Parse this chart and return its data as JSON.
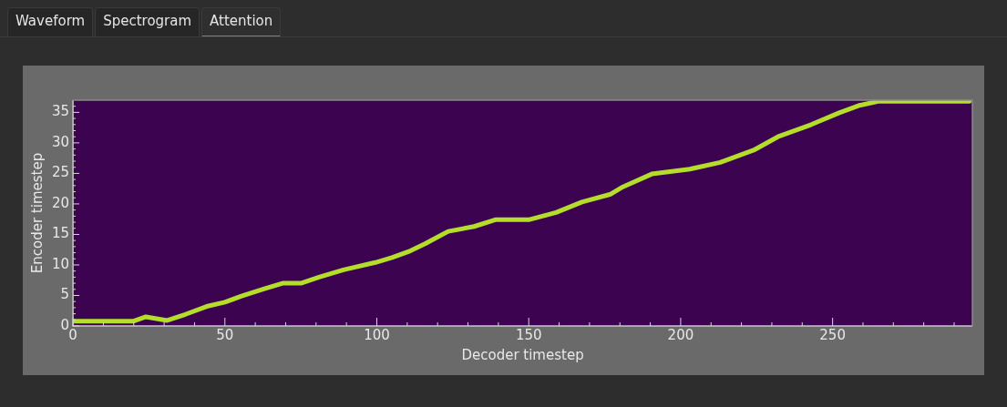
{
  "chart_data": {
    "type": "line",
    "xlabel": "Decoder timestep",
    "ylabel": "Encoder timestep",
    "annotations": [
      "Waveform",
      "Spectrogram",
      "Attention"
    ],
    "xlim": [
      0,
      296
    ],
    "ylim": [
      0,
      37
    ],
    "xticks": [
      0,
      {
        "value": 10,
        "label": null
      },
      {
        "value": 20,
        "label": null
      },
      {
        "value": 30,
        "label": null
      },
      {
        "value": 40,
        "label": null
      },
      50,
      {
        "value": 60,
        "label": null
      },
      {
        "value": 70,
        "label": null
      },
      {
        "value": 80,
        "label": null
      },
      {
        "value": 90,
        "label": null
      },
      100,
      {
        "value": 110,
        "label": null
      },
      {
        "value": 120,
        "label": null
      },
      {
        "value": 130,
        "label": null
      },
      {
        "value": 140,
        "label": null
      },
      150,
      {
        "value": 160,
        "label": null
      },
      {
        "value": 170,
        "label": null
      },
      {
        "value": 180,
        "label": null
      },
      {
        "value": 190,
        "label": null
      },
      200,
      {
        "value": 210,
        "label": null
      },
      {
        "value": 220,
        "label": null
      },
      {
        "value": 230,
        "label": null
      },
      {
        "value": 240,
        "label": null
      },
      250,
      {
        "value": 260,
        "label": null
      },
      {
        "value": 270,
        "label": null
      },
      {
        "value": 280,
        "label": null
      },
      {
        "value": 290,
        "label": null
      }
    ],
    "yticks": [
      0,
      {
        "value": 1,
        "label": null
      },
      {
        "value": 2,
        "label": null
      },
      {
        "value": 3,
        "label": null
      },
      {
        "value": 4,
        "label": null
      },
      5,
      {
        "value": 6,
        "label": null
      },
      {
        "value": 7,
        "label": null
      },
      {
        "value": 8,
        "label": null
      },
      {
        "value": 9,
        "label": null
      },
      10,
      {
        "value": 11,
        "label": null
      },
      {
        "value": 12,
        "label": null
      },
      {
        "value": 13,
        "label": null
      },
      {
        "value": 14,
        "label": null
      },
      15,
      {
        "value": 16,
        "label": null
      },
      {
        "value": 17,
        "label": null
      },
      {
        "value": 18,
        "label": null
      },
      {
        "value": 19,
        "label": null
      },
      20,
      {
        "value": 21,
        "label": null
      },
      {
        "value": 22,
        "label": null
      },
      {
        "value": 23,
        "label": null
      },
      {
        "value": 24,
        "label": null
      },
      25,
      {
        "value": 26,
        "label": null
      },
      {
        "value": 27,
        "label": null
      },
      {
        "value": 28,
        "label": null
      },
      {
        "value": 29,
        "label": null
      },
      30,
      {
        "value": 31,
        "label": null
      },
      {
        "value": 32,
        "label": null
      },
      {
        "value": 33,
        "label": null
      },
      {
        "value": 34,
        "label": null
      },
      35,
      {
        "value": 36,
        "label": null
      }
    ],
    "grid": false,
    "legend": false,
    "marker": "none",
    "line_style": "solid",
    "series": [
      {
        "color": "#b5de2b",
        "x": [
          0,
          20,
          24,
          31,
          37,
          44,
          50,
          55.5,
          63,
          69,
          75,
          81,
          89,
          99.5,
          105,
          111,
          116,
          123.5,
          132,
          139,
          150,
          159,
          167.5,
          177,
          181,
          190.5,
          203,
          213,
          224,
          232,
          243,
          252,
          258.5,
          265,
          295
        ],
        "values": [
          0.8,
          0.8,
          1.5,
          0.9,
          1.9,
          3.2,
          3.9,
          4.9,
          6.1,
          7,
          7,
          8,
          9.2,
          10.4,
          11.2,
          12.3,
          13.5,
          15.5,
          16.3,
          17.4,
          17.4,
          18.6,
          20.3,
          21.6,
          22.8,
          24.9,
          25.7,
          26.8,
          28.8,
          31,
          33,
          34.9,
          36.1,
          36.8,
          36.8
        ]
      }
    ]
  }
}
